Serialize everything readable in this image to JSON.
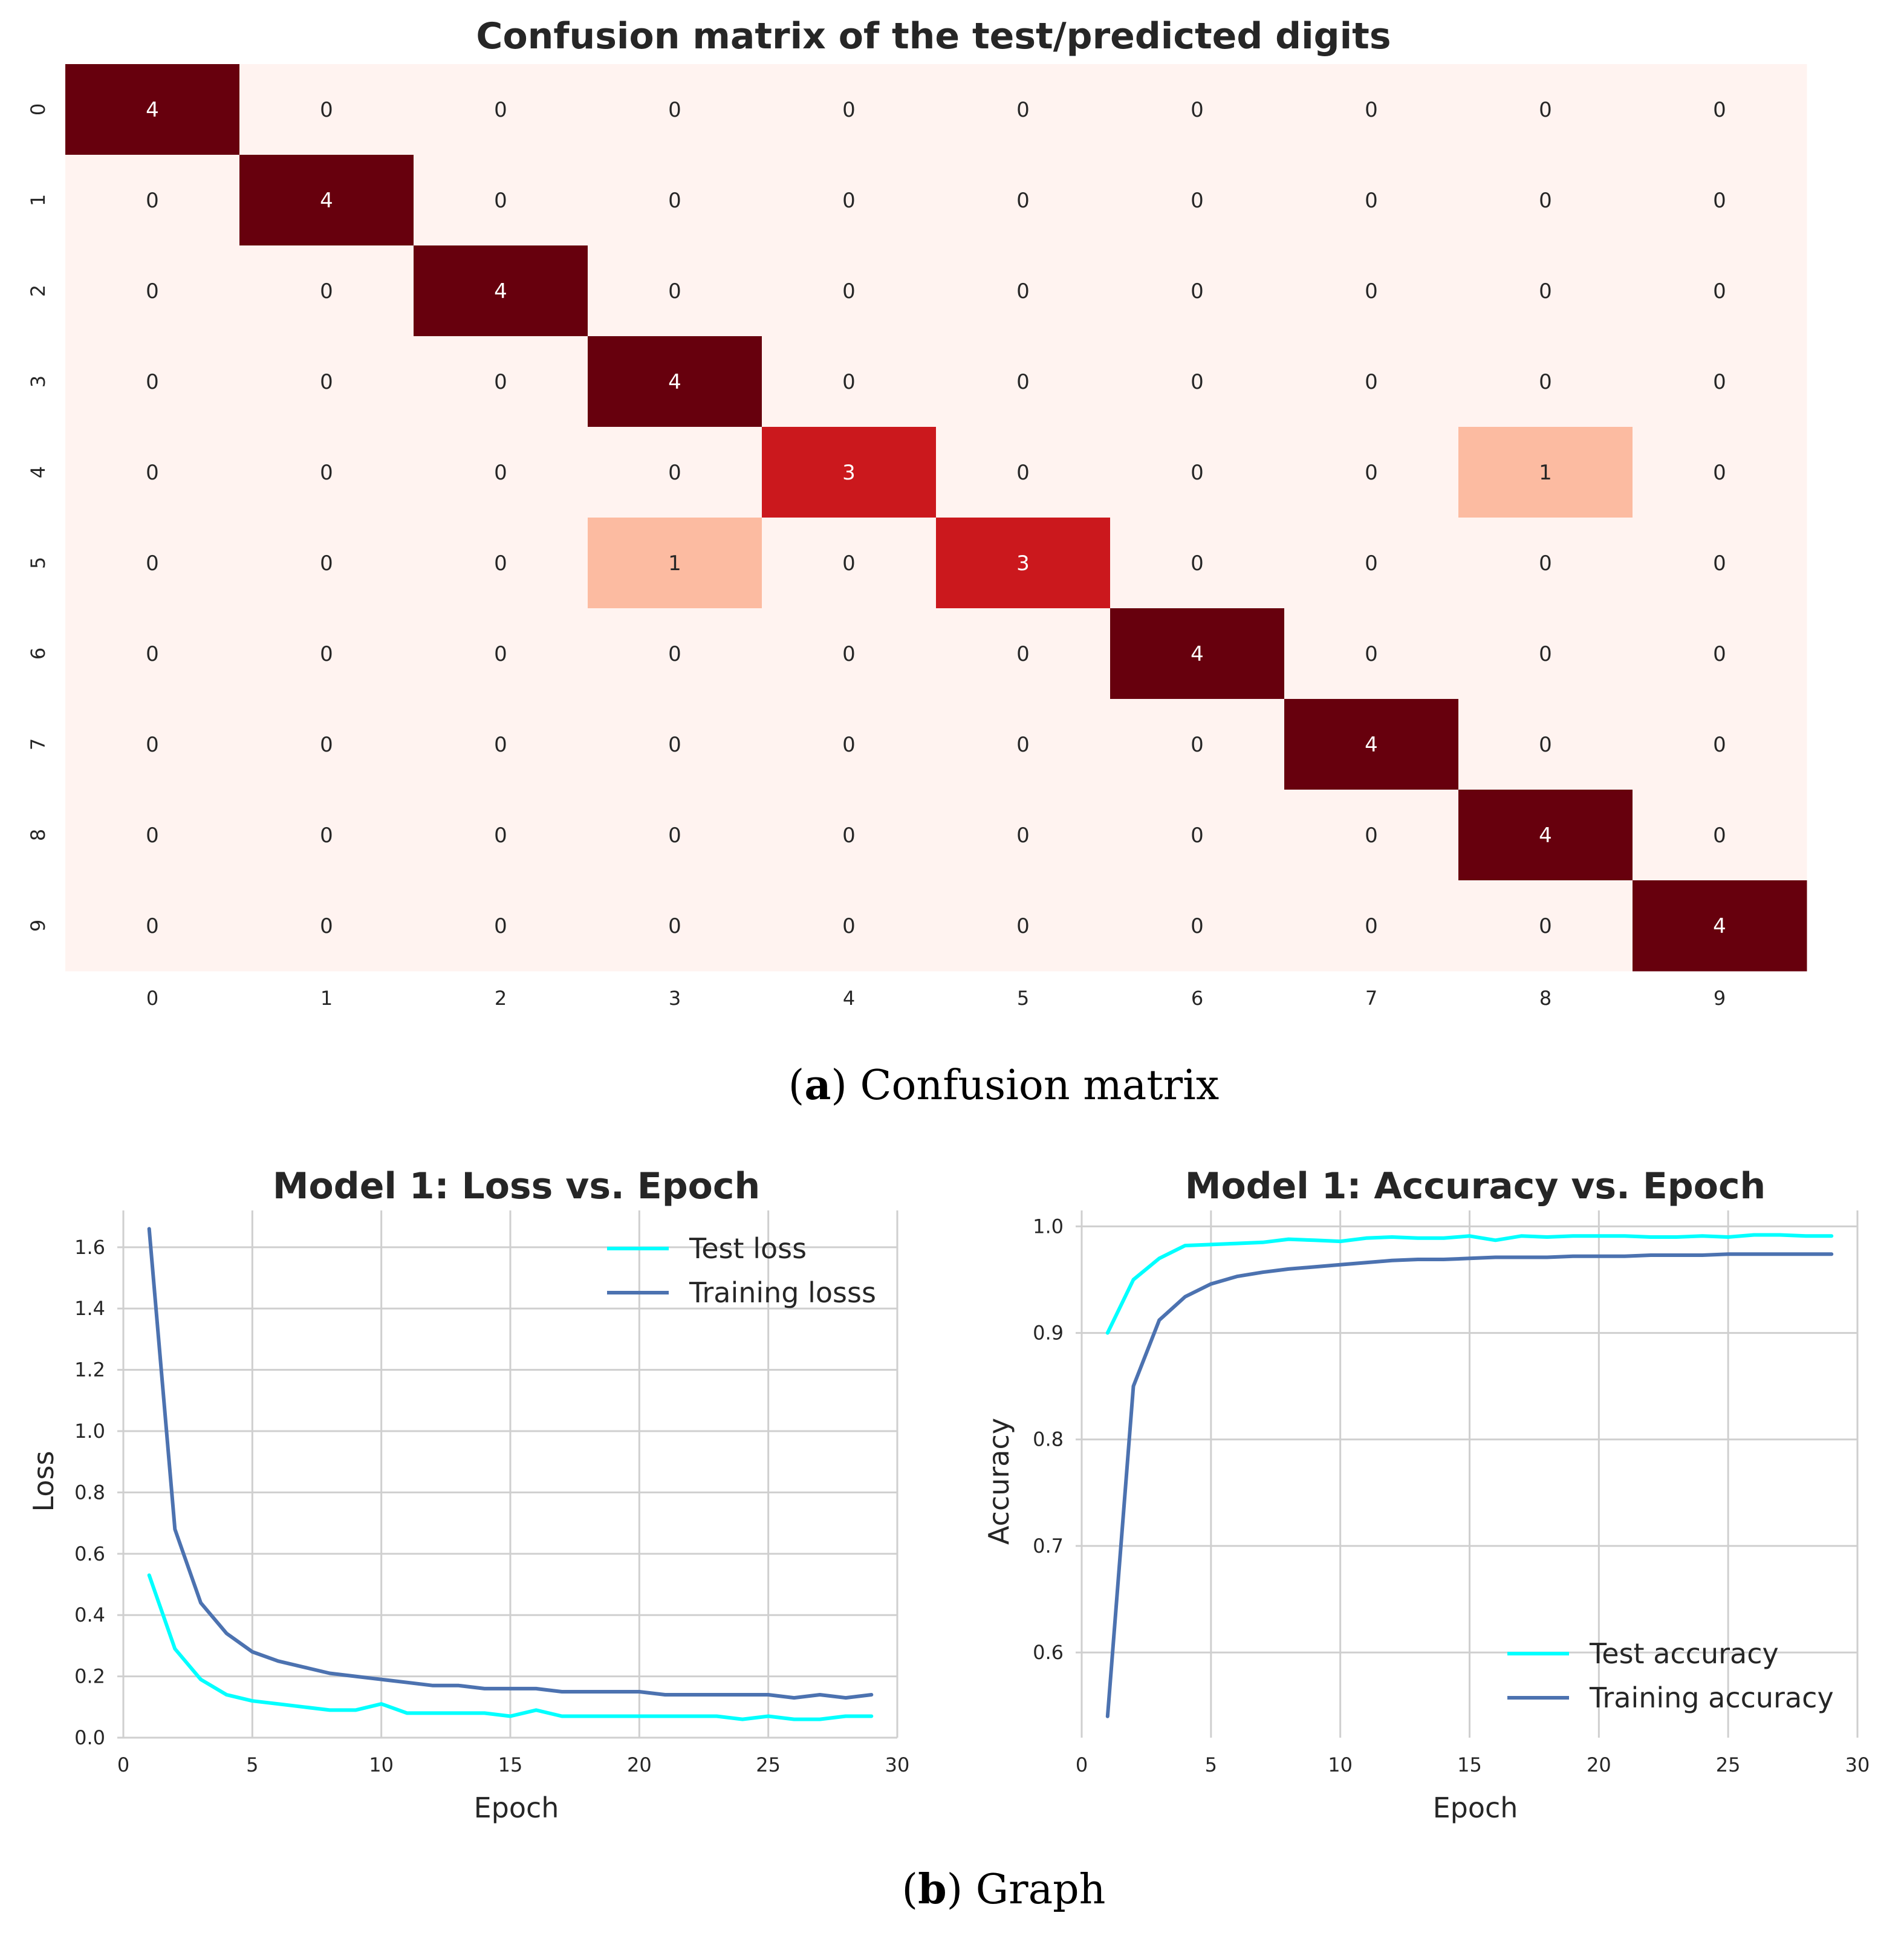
{
  "chart_data": [
    {
      "type": "heatmap",
      "title": "Confusion matrix of the test/predicted digits",
      "caption_letter": "a",
      "caption_text": "Confusion matrix",
      "row_labels": [
        "0",
        "1",
        "2",
        "3",
        "4",
        "5",
        "6",
        "7",
        "8",
        "9"
      ],
      "col_labels": [
        "0",
        "1",
        "2",
        "3",
        "4",
        "5",
        "6",
        "7",
        "8",
        "9"
      ],
      "matrix": [
        [
          4,
          0,
          0,
          0,
          0,
          0,
          0,
          0,
          0,
          0
        ],
        [
          0,
          4,
          0,
          0,
          0,
          0,
          0,
          0,
          0,
          0
        ],
        [
          0,
          0,
          4,
          0,
          0,
          0,
          0,
          0,
          0,
          0
        ],
        [
          0,
          0,
          0,
          4,
          0,
          0,
          0,
          0,
          0,
          0
        ],
        [
          0,
          0,
          0,
          0,
          3,
          0,
          0,
          0,
          1,
          0
        ],
        [
          0,
          0,
          0,
          1,
          0,
          3,
          0,
          0,
          0,
          0
        ],
        [
          0,
          0,
          0,
          0,
          0,
          0,
          4,
          0,
          0,
          0
        ],
        [
          0,
          0,
          0,
          0,
          0,
          0,
          0,
          4,
          0,
          0
        ],
        [
          0,
          0,
          0,
          0,
          0,
          0,
          0,
          0,
          4,
          0
        ],
        [
          0,
          0,
          0,
          0,
          0,
          0,
          0,
          0,
          0,
          4
        ]
      ],
      "colormap": "Reds",
      "colors": {
        "0": "#fff3f0",
        "1": "#fcbba1",
        "3": "#cb181d",
        "4": "#67000d"
      }
    },
    {
      "type": "line",
      "title": "Model 1: Loss vs. Epoch",
      "xlabel": "Epoch",
      "ylabel": "Loss",
      "xlim": [
        0,
        30
      ],
      "ylim": [
        0,
        1.72
      ],
      "xticks": [
        0,
        5,
        10,
        15,
        20,
        25,
        30
      ],
      "yticks": [
        0.0,
        0.2,
        0.4,
        0.6,
        0.8,
        1.0,
        1.2,
        1.4,
        1.6
      ],
      "ytick_labels": [
        "0.0",
        "0.2",
        "0.4",
        "0.6",
        "0.8",
        "1.0",
        "1.2",
        "1.4",
        "1.6"
      ],
      "grid": true,
      "legend_position": "top-right",
      "x": [
        1,
        2,
        3,
        4,
        5,
        6,
        7,
        8,
        9,
        10,
        11,
        12,
        13,
        14,
        15,
        16,
        17,
        18,
        19,
        20,
        21,
        22,
        23,
        24,
        25,
        26,
        27,
        28,
        29
      ],
      "series": [
        {
          "name": "Test loss",
          "color": "#00ffff",
          "values": [
            0.53,
            0.29,
            0.19,
            0.14,
            0.12,
            0.11,
            0.1,
            0.09,
            0.09,
            0.11,
            0.08,
            0.08,
            0.08,
            0.08,
            0.07,
            0.09,
            0.07,
            0.07,
            0.07,
            0.07,
            0.07,
            0.07,
            0.07,
            0.06,
            0.07,
            0.06,
            0.06,
            0.07,
            0.07
          ]
        },
        {
          "name": "Training losss",
          "color": "#4c72b0",
          "values": [
            1.66,
            0.68,
            0.44,
            0.34,
            0.28,
            0.25,
            0.23,
            0.21,
            0.2,
            0.19,
            0.18,
            0.17,
            0.17,
            0.16,
            0.16,
            0.16,
            0.15,
            0.15,
            0.15,
            0.15,
            0.14,
            0.14,
            0.14,
            0.14,
            0.14,
            0.13,
            0.14,
            0.13,
            0.14
          ]
        }
      ]
    },
    {
      "type": "line",
      "title": "Model 1: Accuracy vs. Epoch",
      "xlabel": "Epoch",
      "ylabel": "Accuracy",
      "xlim": [
        0,
        30
      ],
      "ylim": [
        0.52,
        1.015
      ],
      "xticks": [
        0,
        5,
        10,
        15,
        20,
        25,
        30
      ],
      "yticks": [
        0.6,
        0.7,
        0.8,
        0.9,
        1.0
      ],
      "ytick_labels": [
        "0.6",
        "0.7",
        "0.8",
        "0.9",
        "1.0"
      ],
      "grid": true,
      "legend_position": "bottom-right",
      "x": [
        1,
        2,
        3,
        4,
        5,
        6,
        7,
        8,
        9,
        10,
        11,
        12,
        13,
        14,
        15,
        16,
        17,
        18,
        19,
        20,
        21,
        22,
        23,
        24,
        25,
        26,
        27,
        28,
        29
      ],
      "series": [
        {
          "name": "Test accuracy",
          "color": "#00ffff",
          "values": [
            0.9,
            0.95,
            0.97,
            0.982,
            0.983,
            0.984,
            0.985,
            0.988,
            0.987,
            0.986,
            0.989,
            0.99,
            0.989,
            0.989,
            0.991,
            0.987,
            0.991,
            0.99,
            0.991,
            0.991,
            0.991,
            0.99,
            0.99,
            0.991,
            0.99,
            0.992,
            0.992,
            0.991,
            0.991
          ]
        },
        {
          "name": "Training accuracy",
          "color": "#4c72b0",
          "values": [
            0.54,
            0.85,
            0.912,
            0.934,
            0.946,
            0.953,
            0.957,
            0.96,
            0.962,
            0.964,
            0.966,
            0.968,
            0.969,
            0.969,
            0.97,
            0.971,
            0.971,
            0.971,
            0.972,
            0.972,
            0.972,
            0.973,
            0.973,
            0.973,
            0.974,
            0.974,
            0.974,
            0.974,
            0.974
          ]
        }
      ]
    }
  ],
  "captions": {
    "b_letter": "b",
    "b_text": "Graph"
  }
}
